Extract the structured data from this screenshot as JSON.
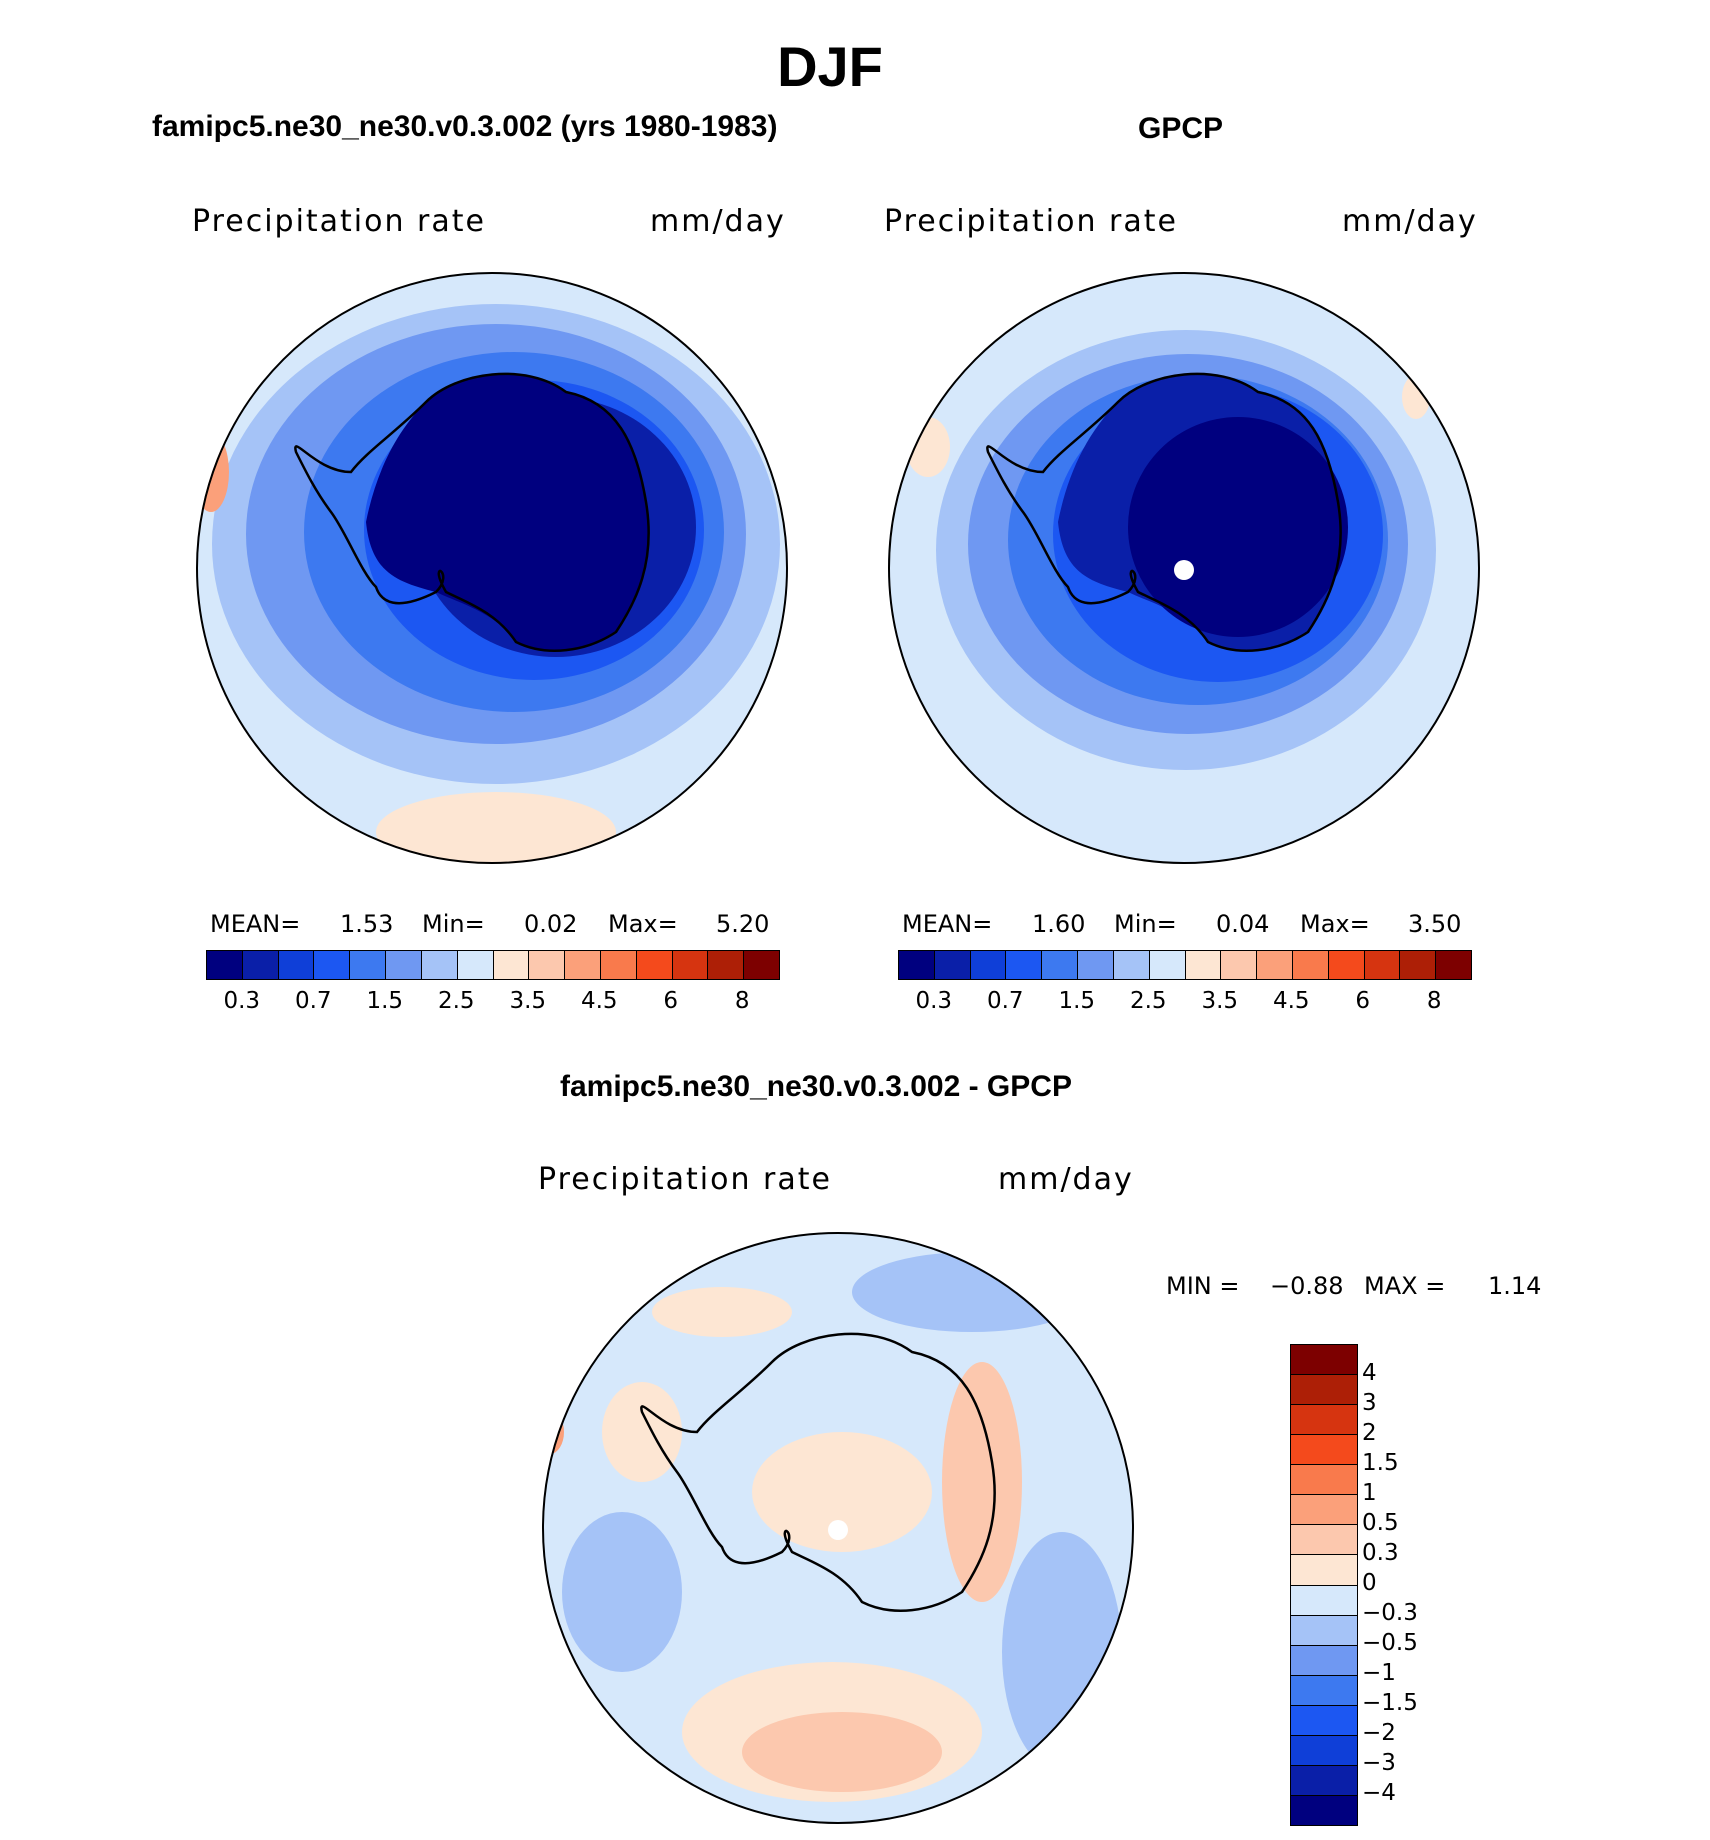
{
  "title": "DJF",
  "panel_left": {
    "subtitle": "famipc5.ne30_ne30.v0.3.002 (yrs 1980-1983)",
    "variable": "Precipitation rate",
    "units": "mm/day",
    "stats": {
      "mean_label": "MEAN=",
      "mean": "1.53",
      "min_label": "Min=",
      "min": "0.02",
      "max_label": "Max=",
      "max": "5.20"
    }
  },
  "panel_right": {
    "subtitle": "GPCP",
    "variable": "Precipitation rate",
    "units": "mm/day",
    "stats": {
      "mean_label": "MEAN=",
      "mean": "1.60",
      "min_label": "Min=",
      "min": "0.04",
      "max_label": "Max=",
      "max": "3.50"
    }
  },
  "panel_diff": {
    "subtitle": "famipc5.ne30_ne30.v0.3.002 - GPCP",
    "variable": "Precipitation rate",
    "units": "mm/day",
    "minmax": {
      "min_label": "MIN =",
      "min": "−0.88",
      "max_label": "MAX =",
      "max": "1.14"
    }
  },
  "colorbar_abs": {
    "colors": [
      "#00007f",
      "#0a1fa8",
      "#0f3fd8",
      "#1c57f2",
      "#3d79f0",
      "#6f98f2",
      "#a5c3f7",
      "#d6e8fb",
      "#fde6d3",
      "#fcc8ae",
      "#fba07a",
      "#f97a4c",
      "#f44a1c",
      "#d63410",
      "#ad1f06",
      "#7d0000"
    ],
    "ticks": [
      "0.3",
      "0.7",
      "1.5",
      "2.5",
      "3.5",
      "4.5",
      "6",
      "8"
    ]
  },
  "colorbar_diff": {
    "colors": [
      "#7d0000",
      "#ad1f06",
      "#d63410",
      "#f44a1c",
      "#f97a4c",
      "#fba07a",
      "#fcc8ae",
      "#fde6d3",
      "#d6e8fb",
      "#a5c3f7",
      "#6f98f2",
      "#3d79f0",
      "#1c57f2",
      "#0f3fd8",
      "#0a1fa8",
      "#00007f"
    ],
    "ticks": [
      "4",
      "3",
      "2",
      "1.5",
      "1",
      "0.5",
      "0.3",
      "0",
      "−0.3",
      "−0.5",
      "−1",
      "−1.5",
      "−2",
      "−3",
      "−4"
    ]
  }
}
